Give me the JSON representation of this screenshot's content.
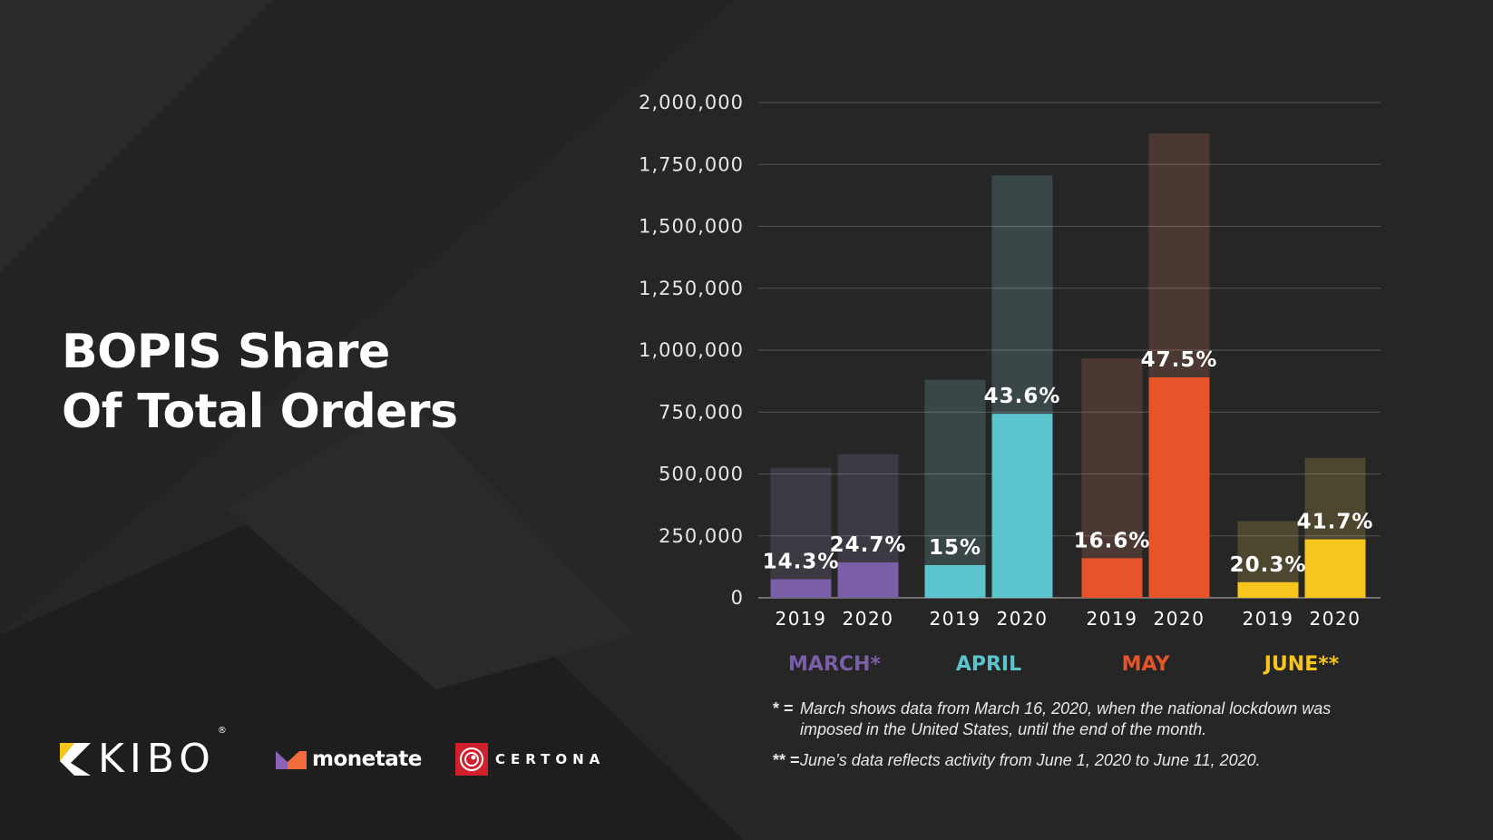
{
  "title": {
    "line1": "BOPIS Share",
    "line2": "Of Total Orders"
  },
  "colors": {
    "background": "#262626",
    "march": "#7a5ea8",
    "april": "#5cc4cc",
    "may": "#e8542a",
    "june": "#f7c51c",
    "gridline": "#555555"
  },
  "chart_data": {
    "type": "bar",
    "title": "BOPIS Share Of Total Orders",
    "xlabel": "",
    "ylabel": "",
    "ylim": [
      0,
      2000000
    ],
    "yticks": [
      "0",
      "250,000",
      "500,000",
      "750,000",
      "1,000,000",
      "1,250,000",
      "1,500,000",
      "1,750,000",
      "2,000,000"
    ],
    "ytick_values": [
      0,
      250000,
      500000,
      750000,
      1000000,
      1250000,
      1500000,
      1750000,
      2000000
    ],
    "grid": true,
    "groups": [
      {
        "month": "MARCH*",
        "color_key": "march",
        "bars": [
          {
            "year": "2019",
            "total": 525000,
            "bopis": 75000,
            "label": "14.3%"
          },
          {
            "year": "2020",
            "total": 580000,
            "bopis": 143000,
            "label": "24.7%"
          }
        ]
      },
      {
        "month": "APRIL",
        "color_key": "april",
        "bars": [
          {
            "year": "2019",
            "total": 880000,
            "bopis": 132000,
            "label": "15%"
          },
          {
            "year": "2020",
            "total": 1705000,
            "bopis": 743000,
            "label": "43.6%"
          }
        ]
      },
      {
        "month": "MAY",
        "color_key": "may",
        "bars": [
          {
            "year": "2019",
            "total": 967000,
            "bopis": 160000,
            "label": "16.6%"
          },
          {
            "year": "2020",
            "total": 1875000,
            "bopis": 890000,
            "label": "47.5%"
          }
        ]
      },
      {
        "month": "JUNE**",
        "color_key": "june",
        "bars": [
          {
            "year": "2019",
            "total": 310000,
            "bopis": 63000,
            "label": "20.3%"
          },
          {
            "year": "2020",
            "total": 565000,
            "bopis": 236000,
            "label": "41.7%"
          }
        ]
      }
    ]
  },
  "footnotes": [
    {
      "mark": "* =",
      "text": "March shows data from March 16, 2020, when the national lockdown was imposed in the United States, until the end of the month."
    },
    {
      "mark": "** =",
      "text": "June’s data reflects activity from June 1, 2020 to June 11, 2020."
    }
  ],
  "logos": {
    "kibo": "KIBO",
    "kibo_mark": "®",
    "monetate": "monetate",
    "certona": "CERTONA"
  }
}
